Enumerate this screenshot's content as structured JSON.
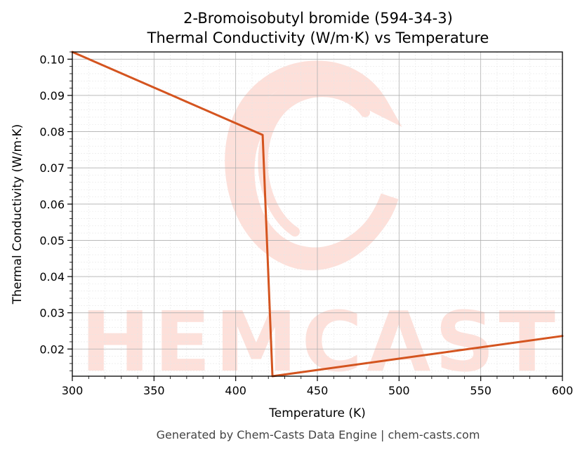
{
  "chart_data": {
    "type": "line",
    "title": "2-Bromoisobutyl bromide (594-34-3)",
    "subtitle": "Thermal Conductivity (W/m·K) vs Temperature",
    "xlabel": "Temperature (K)",
    "ylabel": "Thermal Conductivity (W/m·K)",
    "xlim": [
      300,
      600
    ],
    "ylim": [
      0.0125,
      0.102
    ],
    "x_ticks": [
      300,
      350,
      400,
      450,
      500,
      550,
      600
    ],
    "x_tick_labels": [
      "300",
      "350",
      "400",
      "450",
      "500",
      "550",
      "600"
    ],
    "y_ticks": [
      0.02,
      0.03,
      0.04,
      0.05,
      0.06,
      0.07,
      0.08,
      0.09,
      0.1
    ],
    "y_tick_labels": [
      "0.02",
      "0.03",
      "0.04",
      "0.05",
      "0.06",
      "0.07",
      "0.08",
      "0.09",
      "0.10"
    ],
    "grid": true,
    "series": [
      {
        "color": "#d4541f",
        "x": [
          300,
          416.5,
          422.5,
          600
        ],
        "y": [
          0.102,
          0.0791,
          0.0125,
          0.0236
        ]
      }
    ]
  },
  "watermark": {
    "text": "CHEMCASTS",
    "color": "#fde0da"
  },
  "footer": "Generated by Chem-Casts Data Engine | chem-casts.com"
}
